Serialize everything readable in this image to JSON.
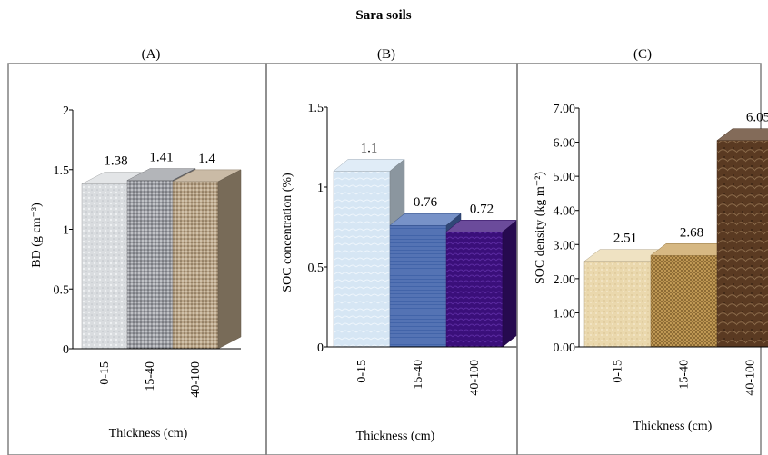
{
  "figure_title": "Sara soils",
  "chart_data": [
    {
      "type": "bar",
      "panel": "(A)",
      "categories": [
        "0-15",
        "15-40",
        "40-100"
      ],
      "values": [
        1.38,
        1.41,
        1.4
      ],
      "value_labels": [
        "1.38",
        "1.41",
        "1.4"
      ],
      "xlabel": "Thickness (cm)",
      "ylabel": "BD (g cm⁻³)",
      "ylim": [
        0,
        2
      ],
      "yticks": [
        0,
        0.5,
        1,
        1.5,
        2
      ],
      "ytick_labels": [
        "0",
        "0.5",
        "1",
        "1.5",
        "2"
      ],
      "colors": [
        "#d9dcdf",
        "#9a9ca2",
        "#b8a488"
      ]
    },
    {
      "type": "bar",
      "panel": "(B)",
      "categories": [
        "0-15",
        "15-40",
        "40-100"
      ],
      "values": [
        1.1,
        0.76,
        0.72
      ],
      "value_labels": [
        "1.1",
        "0.76",
        "0.72"
      ],
      "xlabel": "Thickness (cm)",
      "ylabel": "SOC concentration (%)",
      "ylim": [
        0,
        1.5
      ],
      "yticks": [
        0,
        0.5,
        1,
        1.5
      ],
      "ytick_labels": [
        "0",
        "0.5",
        "1",
        "1.5"
      ],
      "colors": [
        "#d6e6f4",
        "#4a6db5",
        "#3a0f7a"
      ]
    },
    {
      "type": "bar",
      "panel": "(C)",
      "categories": [
        "0-15",
        "15-40",
        "40-100"
      ],
      "values": [
        2.51,
        2.68,
        6.05
      ],
      "value_labels": [
        "2.51",
        "2.68",
        "6.05"
      ],
      "xlabel": "Thickness (cm)",
      "ylabel": "SOC density (kg m⁻²)",
      "ylim": [
        0,
        7
      ],
      "yticks": [
        0,
        1,
        2,
        3,
        4,
        5,
        6,
        7
      ],
      "ytick_labels": [
        "0.00",
        "1.00",
        "2.00",
        "3.00",
        "4.00",
        "5.00",
        "6.00",
        "7.00"
      ],
      "colors": [
        "#ead8ad",
        "#c8a05a",
        "#5a3a22"
      ]
    }
  ]
}
